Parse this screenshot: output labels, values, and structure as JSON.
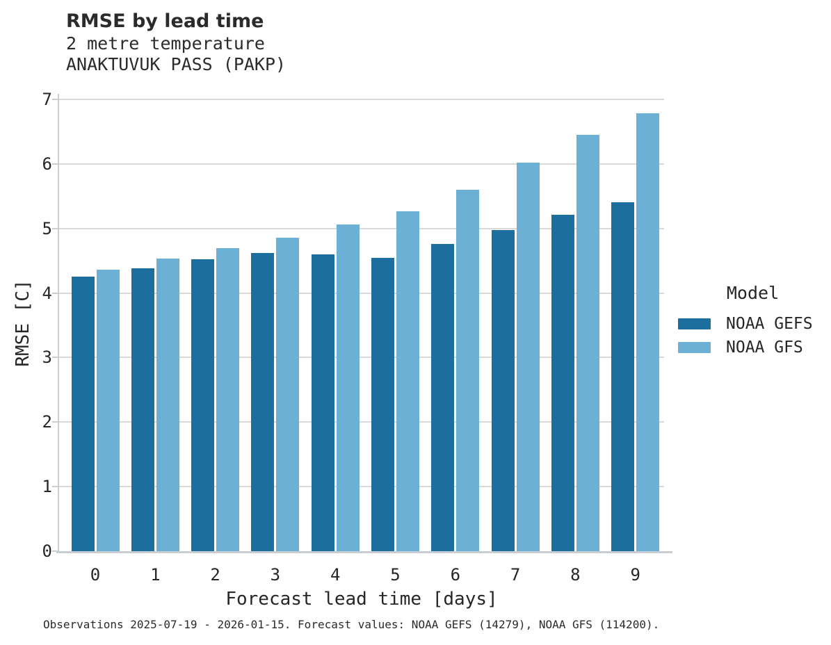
{
  "header": {
    "title": "RMSE by lead time",
    "subtitle1": "2 metre temperature",
    "subtitle2": "ANAKTUVUK PASS (PAKP)"
  },
  "chart_data": {
    "type": "bar",
    "title": "RMSE by lead time",
    "subtitle": [
      "2 metre temperature",
      "ANAKTUVUK PASS (PAKP)"
    ],
    "categories": [
      "0",
      "1",
      "2",
      "3",
      "4",
      "5",
      "6",
      "7",
      "8",
      "9"
    ],
    "series": [
      {
        "name": "NOAA GEFS",
        "color": "#1b6e9d",
        "values": [
          4.25,
          4.38,
          4.52,
          4.62,
          4.6,
          4.54,
          4.76,
          4.98,
          5.21,
          5.41
        ]
      },
      {
        "name": "NOAA GFS",
        "color": "#6cb0d6",
        "values": [
          4.36,
          4.53,
          4.7,
          4.86,
          5.06,
          5.27,
          5.6,
          6.02,
          6.45,
          6.78
        ]
      }
    ],
    "xlabel": "Forecast lead time [days]",
    "ylabel": "RMSE [C]",
    "ylim": [
      0,
      7
    ],
    "yticks": [
      0,
      1,
      2,
      3,
      4,
      5,
      6,
      7
    ],
    "grid": "horizontal",
    "legend_title": "Model",
    "legend_position": "right"
  },
  "legend": {
    "title": "Model",
    "items": [
      {
        "label": "NOAA GEFS",
        "color": "#1b6e9d"
      },
      {
        "label": "NOAA GFS",
        "color": "#6cb0d6"
      }
    ]
  },
  "footer": {
    "caption": "Observations 2025-07-19 - 2026-01-15. Forecast values: NOAA GEFS (14279), NOAA GFS (114200)."
  },
  "colors": {
    "gefs": "#1b6e9d",
    "gfs": "#6cb0d6",
    "gridline": "#d9d9d9",
    "axis": "#c9ced4",
    "text": "#262626"
  }
}
